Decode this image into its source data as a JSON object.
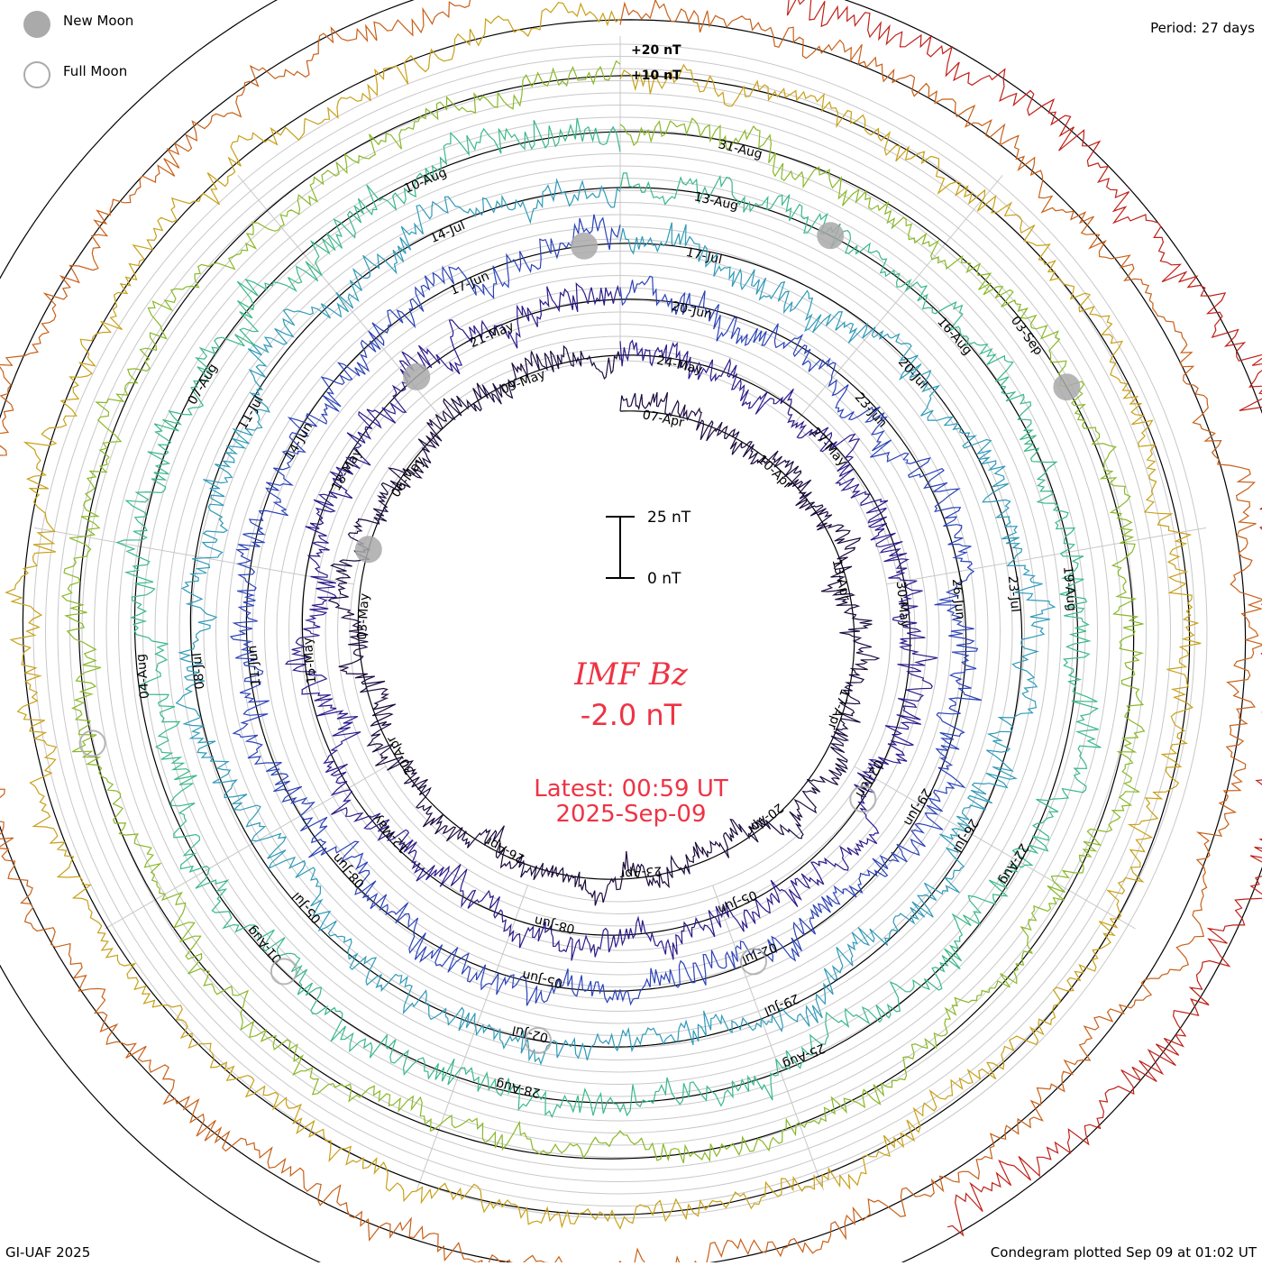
{
  "legend": {
    "new_moon_label": "New Moon",
    "full_moon_label": "Full Moon",
    "new_moon_color": "#aaaaaa",
    "full_moon_color": "#aaaaaa"
  },
  "period_label": "Period: 27 days",
  "footer": {
    "left": "GI-UAF 2025",
    "right": "Condegram plotted Sep 09 at 01:02 UT"
  },
  "center": {
    "title": "IMF Bz",
    "value": "-2.0 nT",
    "latest_label": "Latest: 00:59 UT",
    "latest_date": "2025-Sep-09",
    "text_color": "#ee3344"
  },
  "chart_data": {
    "type": "line",
    "subtype": "condegram-spiral",
    "title": "IMF Bz",
    "period_days": 27,
    "scale_bar": {
      "top_label": "25 nT",
      "bottom_label": "0 nT",
      "span_nT": 25
    },
    "ring_labels": [
      "+20 nT",
      "+10 nT"
    ],
    "ring_spacing_nT": 5,
    "grid": true,
    "start_date": "2025-Apr-04",
    "end_date": "2025-Sep-09",
    "current_value_nT": -2.0,
    "series": [
      {
        "turn": 1,
        "color": "#1a0a3c",
        "amplitude_nT": 6,
        "bias_nT": 1,
        "date_labels": [
          "07-Apr",
          "10-Apr",
          "13-Apr",
          "17-Apr",
          "20-Apr",
          "23-Apr",
          "26-Apr",
          "30-Apr",
          "03-May",
          "06-May",
          "09-May"
        ]
      },
      {
        "turn": 2,
        "color": "#2a1a8a",
        "amplitude_nT": 7,
        "bias_nT": 0,
        "date_labels": [
          "24-May",
          "27-May",
          "30-May",
          "02-Jun",
          "05-Jun",
          "08-Jun",
          "12-May",
          "15-May",
          "18-May",
          "21-May"
        ]
      },
      {
        "turn": 3,
        "color": "#2a42b8",
        "amplitude_nT": 7,
        "bias_nT": 0,
        "date_labels": [
          "20-Jun",
          "23-Jun",
          "26-Jun",
          "29-Jun",
          "02-Jul",
          "05-Jun",
          "08-Jun",
          "11-Jun",
          "14-Jun",
          "17-Jun"
        ]
      },
      {
        "turn": 4,
        "color": "#2f9ab8",
        "amplitude_nT": 7,
        "bias_nT": 0,
        "date_labels": [
          "17-Jul",
          "20-Jul",
          "23-Jul",
          "26-Jul",
          "29-Jul",
          "02-Jul",
          "05-Jul",
          "08-Jul",
          "11-Jul",
          "14-Jul"
        ]
      },
      {
        "turn": 5,
        "color": "#3ab88a",
        "amplitude_nT": 7,
        "bias_nT": 0,
        "date_labels": [
          "13-Aug",
          "16-Aug",
          "19-Aug",
          "22-Aug",
          "25-Aug",
          "28-Aug",
          "01-Aug",
          "04-Aug",
          "07-Aug",
          "10-Aug"
        ]
      },
      {
        "turn": 6,
        "color": "#8ab828",
        "amplitude_nT": 6,
        "bias_nT": 0,
        "date_labels": [
          "31-Aug",
          "03-Sep"
        ]
      },
      {
        "turn": 7,
        "color": "#c8a018",
        "amplitude_nT": 6,
        "bias_nT": 0,
        "date_labels": []
      },
      {
        "turn": 8,
        "color": "#c86018",
        "amplitude_nT": 6,
        "bias_nT": 0,
        "date_labels": []
      },
      {
        "turn": 9,
        "color": "#c02018",
        "amplitude_nT": 9,
        "bias_nT": -3,
        "date_labels": []
      }
    ],
    "moon_markers": [
      {
        "type": "new",
        "date": "2025-Apr-27"
      },
      {
        "type": "full",
        "date": "2025-May-12"
      },
      {
        "type": "new",
        "date": "2025-May-27"
      },
      {
        "type": "full",
        "date": "2025-Jun-11"
      },
      {
        "type": "new",
        "date": "2025-Jun-25"
      },
      {
        "type": "full",
        "date": "2025-Jul-10"
      },
      {
        "type": "new",
        "date": "2025-Jul-24"
      },
      {
        "type": "full",
        "date": "2025-Aug-09"
      },
      {
        "type": "new",
        "date": "2025-Aug-23"
      },
      {
        "type": "full",
        "date": "2025-Sep-07"
      }
    ]
  }
}
